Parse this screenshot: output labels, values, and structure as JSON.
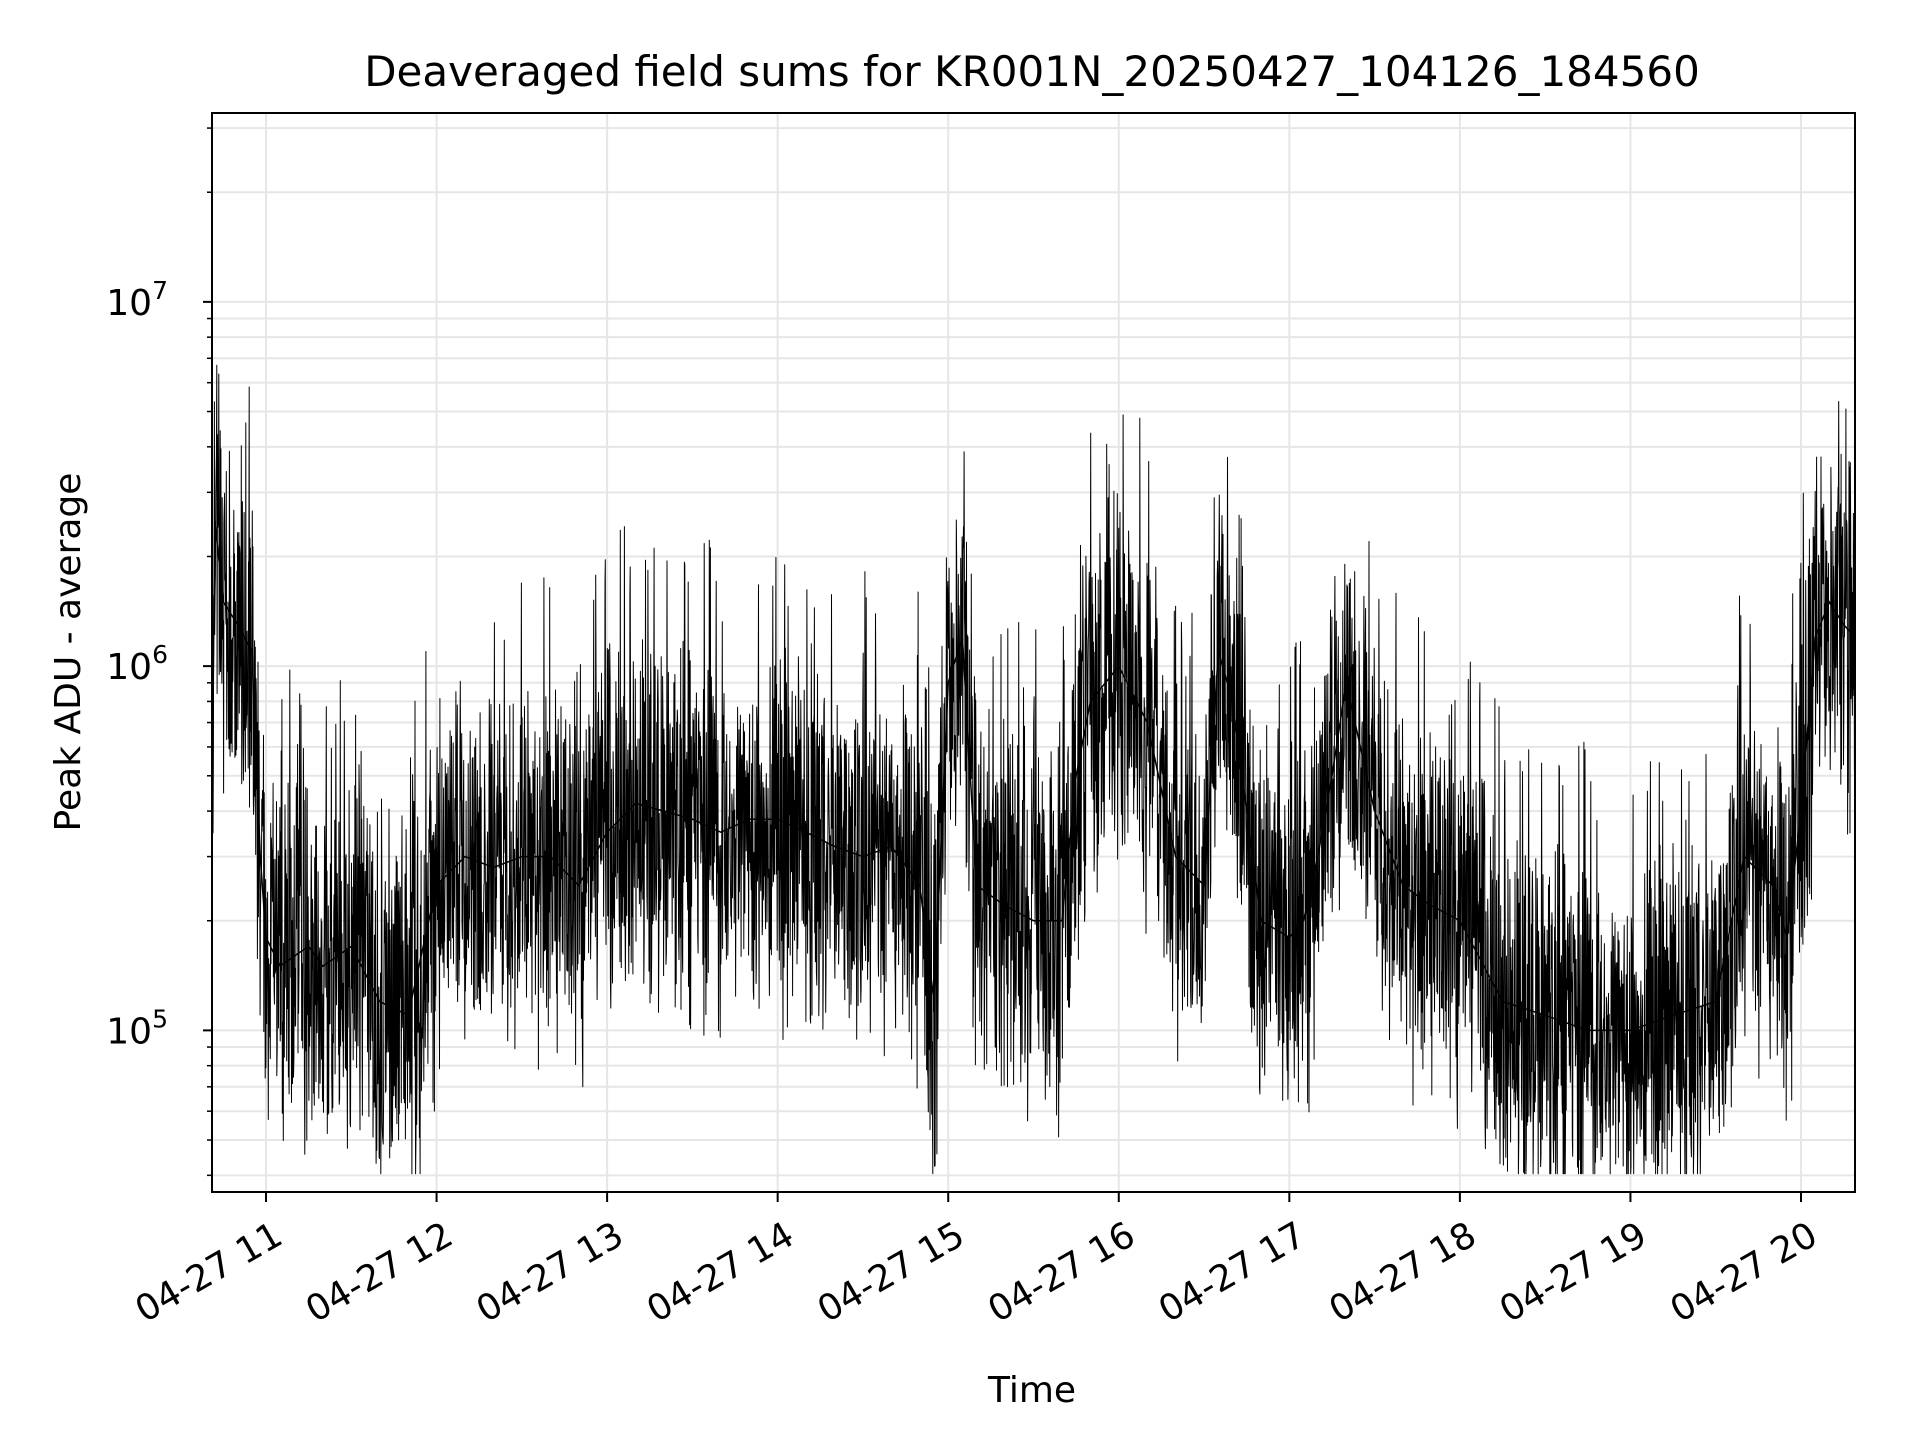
{
  "chart_data": {
    "type": "line",
    "title": "Deaveraged field sums for KR001N_20250427_104126_184560",
    "xlabel": "Time",
    "ylabel": "Peak ADU - average",
    "x_ticks": [
      "04-27 11",
      "04-27 12",
      "04-27 13",
      "04-27 14",
      "04-27 15",
      "04-27 16",
      "04-27 17",
      "04-27 18",
      "04-27 19",
      "04-27 20"
    ],
    "y_ticks": [
      {
        "base": "10",
        "exp": "5",
        "value": 100000
      },
      {
        "base": "10",
        "exp": "6",
        "value": 1000000
      },
      {
        "base": "10",
        "exp": "7",
        "value": 10000000
      }
    ],
    "xlim": [
      "2025-04-27 10:41",
      "2025-04-27 20:19"
    ],
    "ylim": [
      36000,
      33000000
    ],
    "y_scale": "log",
    "grid": true,
    "line_color": "#000000",
    "grid_color": "#e6e6e6",
    "series": [
      {
        "values_note_free": true,
        "x": [
          "2025-04-27 10:41",
          "2025-04-27 10:42",
          "2025-04-27 10:45",
          "2025-04-27 10:50",
          "2025-04-27 10:55",
          "2025-04-27 10:58",
          "2025-04-27 11:00",
          "2025-04-27 11:05",
          "2025-04-27 11:10",
          "2025-04-27 11:15",
          "2025-04-27 11:20",
          "2025-04-27 11:30",
          "2025-04-27 11:40",
          "2025-04-27 11:50",
          "2025-04-27 12:00",
          "2025-04-27 12:10",
          "2025-04-27 12:20",
          "2025-04-27 12:30",
          "2025-04-27 12:40",
          "2025-04-27 12:50",
          "2025-04-27 13:00",
          "2025-04-27 13:10",
          "2025-04-27 13:20",
          "2025-04-27 13:30",
          "2025-04-27 13:40",
          "2025-04-27 13:50",
          "2025-04-27 14:00",
          "2025-04-27 14:10",
          "2025-04-27 14:20",
          "2025-04-27 14:30",
          "2025-04-27 14:40",
          "2025-04-27 14:50",
          "2025-04-27 14:55",
          "2025-04-27 15:00",
          "2025-04-27 15:05",
          "2025-04-27 15:10",
          "2025-04-27 15:20",
          "2025-04-27 15:30",
          "2025-04-27 15:40",
          "2025-04-27 15:45",
          "2025-04-27 15:50",
          "2025-04-27 16:00",
          "2025-04-27 16:10",
          "2025-04-27 16:20",
          "2025-04-27 16:30",
          "2025-04-27 16:35",
          "2025-04-27 16:40",
          "2025-04-27 16:50",
          "2025-04-27 17:00",
          "2025-04-27 17:05",
          "2025-04-27 17:10",
          "2025-04-27 17:15",
          "2025-04-27 17:20",
          "2025-04-27 17:30",
          "2025-04-27 17:40",
          "2025-04-27 17:50",
          "2025-04-27 18:00",
          "2025-04-27 18:15",
          "2025-04-27 18:30",
          "2025-04-27 18:45",
          "2025-04-27 19:00",
          "2025-04-27 19:15",
          "2025-04-27 19:30",
          "2025-04-27 19:40",
          "2025-04-27 19:50",
          "2025-04-27 19:55",
          "2025-04-27 20:00",
          "2025-04-27 20:05",
          "2025-04-27 20:10",
          "2025-04-27 20:15",
          "2025-04-27 20:19"
        ],
        "values": [
          400000,
          2500000,
          1500000,
          1300000,
          1100000,
          300000,
          180000,
          150000,
          160000,
          170000,
          150000,
          170000,
          120000,
          110000,
          250000,
          300000,
          280000,
          300000,
          300000,
          250000,
          350000,
          420000,
          400000,
          380000,
          350000,
          380000,
          380000,
          350000,
          320000,
          300000,
          320000,
          250000,
          120000,
          900000,
          1200000,
          250000,
          220000,
          200000,
          200000,
          500000,
          800000,
          1000000,
          700000,
          300000,
          250000,
          1100000,
          800000,
          200000,
          180000,
          200000,
          300000,
          500000,
          900000,
          400000,
          250000,
          220000,
          200000,
          120000,
          110000,
          100000,
          100000,
          110000,
          120000,
          300000,
          250000,
          180000,
          400000,
          1200000,
          1500000,
          1300000,
          1200000
        ]
      }
    ]
  }
}
